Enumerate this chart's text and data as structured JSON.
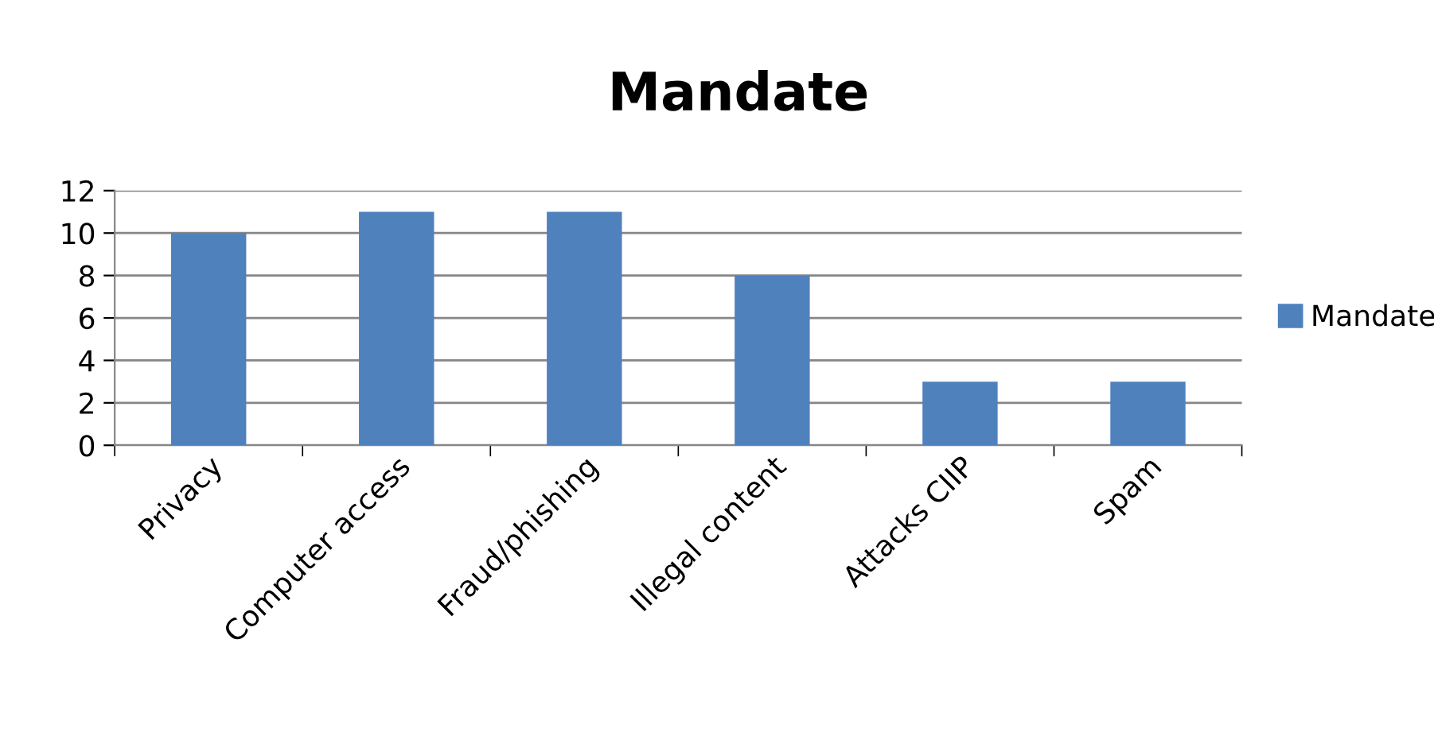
{
  "chart_data": {
    "type": "bar",
    "title": "Mandate",
    "categories": [
      "Privacy",
      "Computer access",
      "Fraud/phishing",
      "Illegal content",
      "Attacks CIIP",
      "Spam"
    ],
    "series": [
      {
        "name": "Mandate",
        "color": "#4f81bd",
        "values": [
          10,
          11,
          11,
          8,
          3,
          3
        ]
      }
    ],
    "ylim": [
      0,
      12
    ],
    "yticks": [
      0,
      2,
      4,
      6,
      8,
      10,
      12
    ],
    "grid": "y",
    "legend": "right"
  }
}
